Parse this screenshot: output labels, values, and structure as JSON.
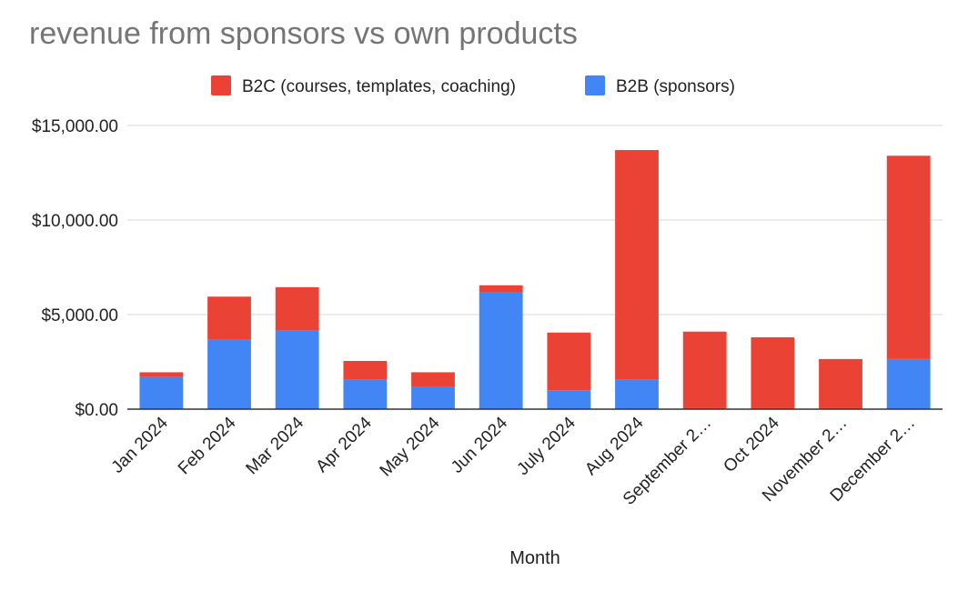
{
  "chart_data": {
    "type": "bar",
    "stacked": true,
    "title": "revenue from sponsors vs own products",
    "xlabel": "Month",
    "ylabel": "",
    "ylim": [
      0,
      15000
    ],
    "yticks": [
      0,
      5000,
      10000,
      15000
    ],
    "ytick_labels": [
      "$0.00",
      "$5,000.00",
      "$10,000.00",
      "$15,000.00"
    ],
    "grid": true,
    "legend_position": "top",
    "categories": [
      "Jan 2024",
      "Feb 2024",
      "Mar 2024",
      "Apr 2024",
      "May 2024",
      "Jun 2024",
      "July 2024",
      "Aug 2024",
      "September 2…",
      "Oct 2024",
      "November 2…",
      "December 2…"
    ],
    "series": [
      {
        "name": "B2B (sponsors)",
        "color": "#4285f4",
        "values": [
          1700,
          3700,
          4150,
          1550,
          1200,
          6200,
          1000,
          1550,
          50,
          50,
          50,
          2650
        ]
      },
      {
        "name": "B2C (courses, templates, coaching)",
        "color": "#ea4335",
        "values": [
          250,
          2250,
          2300,
          1000,
          750,
          350,
          3050,
          12150,
          4050,
          3750,
          2600,
          10750
        ]
      }
    ],
    "legend_order": [
      "B2C (courses, templates, coaching)",
      "B2B (sponsors)"
    ]
  }
}
